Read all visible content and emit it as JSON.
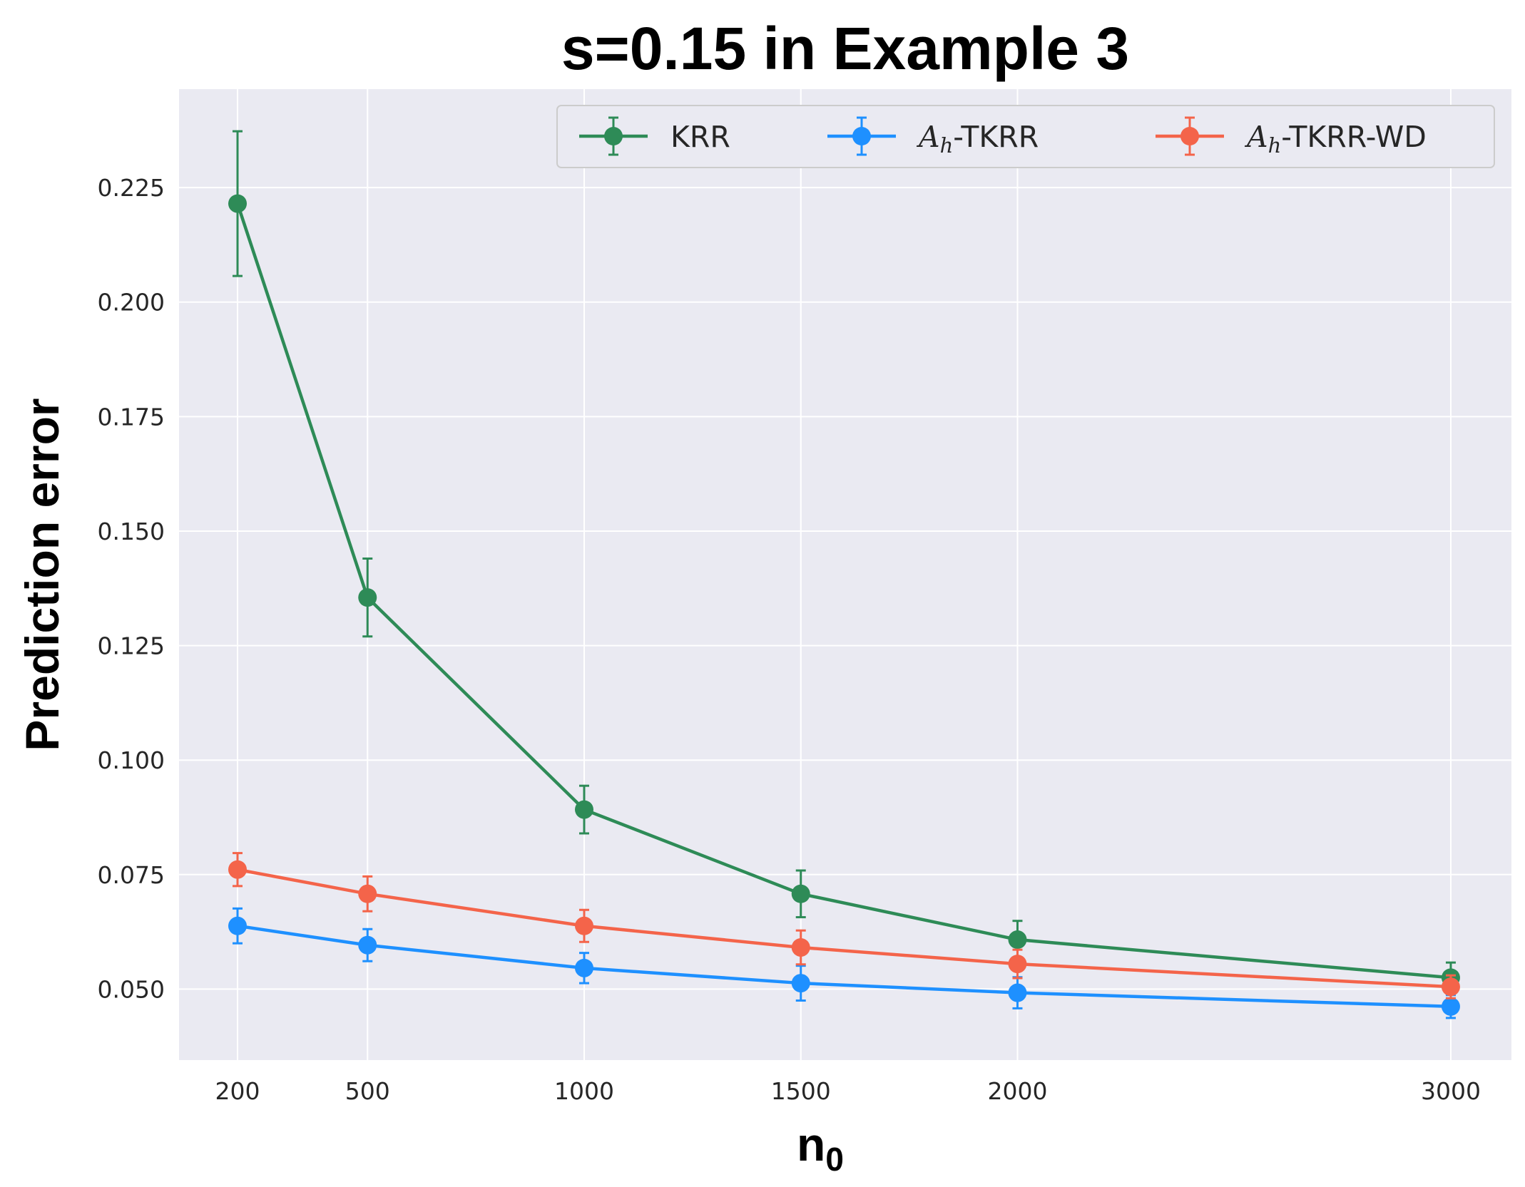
{
  "chart_data": {
    "type": "line",
    "title": "s=0.15 in Example 3",
    "xlabel_main": "n",
    "xlabel_sub": "0",
    "ylabel": "Prediction error",
    "x": [
      200,
      500,
      1000,
      1500,
      2000,
      3000
    ],
    "x_tick_labels": [
      "200",
      "500",
      "1000",
      "1500",
      "2000",
      "3000"
    ],
    "xlim": [
      65,
      3140
    ],
    "ylim": [
      0.0345,
      0.2465
    ],
    "y_ticks": [
      0.05,
      0.075,
      0.1,
      0.125,
      0.15,
      0.175,
      0.2,
      0.225
    ],
    "y_tick_labels": [
      "0.050",
      "0.075",
      "0.100",
      "0.125",
      "0.150",
      "0.175",
      "0.200",
      "0.225"
    ],
    "grid": true,
    "legend_position": "top-right",
    "series": [
      {
        "id": "krr",
        "name": "KRR",
        "color": "#2e8b57",
        "values": [
          0.2215,
          0.1355,
          0.0892,
          0.0708,
          0.0608,
          0.0525
        ],
        "errors": [
          0.0158,
          0.0085,
          0.0052,
          0.0051,
          0.0041,
          0.0033
        ]
      },
      {
        "id": "tkrr",
        "name_prefix": "A",
        "name_sub": "h",
        "name_suffix": "-TKRR",
        "color": "#1e90ff",
        "values": [
          0.0638,
          0.0596,
          0.0546,
          0.0513,
          0.0492,
          0.0462
        ],
        "errors": [
          0.0038,
          0.0035,
          0.0033,
          0.0038,
          0.0034,
          0.0025
        ]
      },
      {
        "id": "tkrr-wd",
        "name_prefix": "A",
        "name_sub": "h",
        "name_suffix": "-TKRR-WD",
        "color": "#f4644a",
        "values": [
          0.0761,
          0.0708,
          0.0638,
          0.0591,
          0.0555,
          0.0505
        ],
        "errors": [
          0.0036,
          0.0038,
          0.0035,
          0.0037,
          0.0031,
          0.0025
        ]
      }
    ]
  }
}
